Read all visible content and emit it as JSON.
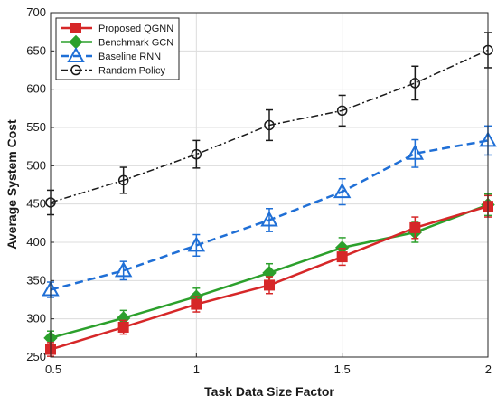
{
  "chart_data": {
    "type": "line",
    "title": "",
    "xlabel": "Task Data Size Factor",
    "ylabel": "Average System Cost",
    "xlim": [
      0.5,
      2
    ],
    "ylim": [
      250,
      700
    ],
    "xticks": [
      "0.5",
      "1",
      "1.5",
      "2"
    ],
    "yticks": [
      "250",
      "300",
      "350",
      "400",
      "450",
      "500",
      "550",
      "600",
      "650",
      "700"
    ],
    "grid": true,
    "legend_position": "top-left",
    "x": [
      0.5,
      0.75,
      1.0,
      1.25,
      1.5,
      1.75,
      2.0
    ],
    "series": [
      {
        "name": "Proposed QGNN",
        "color": "#d62728",
        "marker": "square",
        "line": "solid",
        "values": [
          260,
          289,
          319,
          344,
          381,
          419,
          447
        ],
        "errors": [
          9,
          9,
          10,
          11,
          11,
          14,
          14
        ]
      },
      {
        "name": "Benchmark GCN",
        "color": "#2ca02c",
        "marker": "diamond",
        "line": "solid",
        "values": [
          275,
          301,
          329,
          360,
          393,
          413,
          449
        ],
        "errors": [
          9,
          10,
          11,
          12,
          13,
          13,
          14
        ]
      },
      {
        "name": "Baseline RNN",
        "color": "#1f6fd6",
        "marker": "triangle",
        "line": "dashed",
        "values": [
          338,
          363,
          396,
          429,
          466,
          516,
          533
        ],
        "errors": [
          10,
          12,
          14,
          15,
          17,
          18,
          19
        ]
      },
      {
        "name": "Random Policy",
        "color": "#1a1a1a",
        "marker": "circle",
        "line": "dashdot",
        "values": [
          452,
          481,
          515,
          553,
          572,
          608,
          651
        ],
        "errors": [
          16,
          17,
          18,
          20,
          20,
          22,
          23
        ]
      }
    ]
  }
}
